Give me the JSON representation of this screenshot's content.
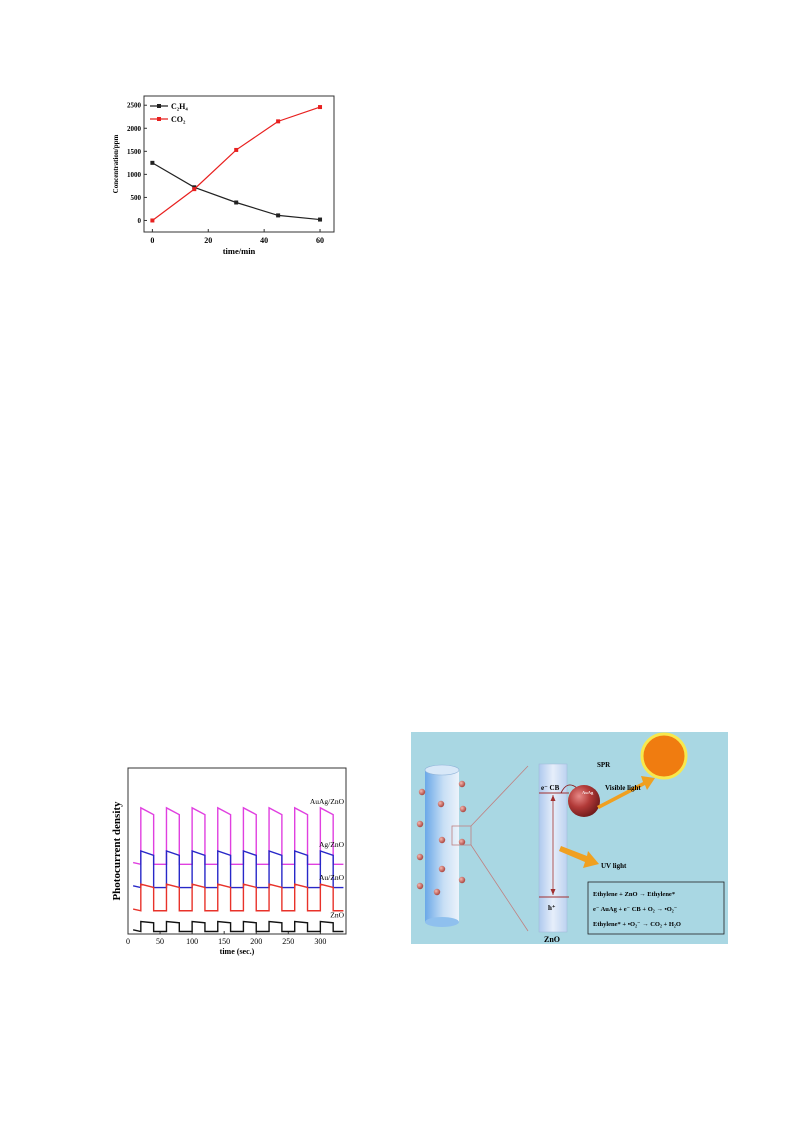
{
  "chart_data": [
    {
      "type": "line",
      "title": "",
      "xlabel": "time/min",
      "ylabel": "Concentration/ppm",
      "xlim": [
        -3,
        65
      ],
      "ylim": [
        -250,
        2700
      ],
      "xticks": [
        "0",
        "20",
        "40",
        "60"
      ],
      "yticks": [
        "0",
        "500",
        "1000",
        "1500",
        "2000",
        "2500"
      ],
      "legend_position": "top-left",
      "x": [
        0,
        15,
        30,
        45,
        60
      ],
      "series": [
        {
          "name": "C₂H₄",
          "color": "#222222",
          "values": [
            1250,
            720,
            390,
            110,
            20
          ]
        },
        {
          "name": "CO₂",
          "color": "#e8201f",
          "values": [
            0,
            680,
            1530,
            2150,
            2460
          ]
        }
      ]
    },
    {
      "type": "line",
      "title": "",
      "xlabel": "time (sec.)",
      "ylabel": "Photocurrent density",
      "xlim": [
        0,
        340
      ],
      "xticks": [
        "0",
        "50",
        "100",
        "150",
        "200",
        "250",
        "300"
      ],
      "on_off_period_sec": 40,
      "series": [
        {
          "name": "AuAg/ZnO",
          "color": "#e040e0",
          "baseline": 0.42,
          "step": 0.34
        },
        {
          "name": "Ag/ZnO",
          "color": "#2828c8",
          "baseline": 0.28,
          "step": 0.22
        },
        {
          "name": "Au/ZnO",
          "color": "#e8322a",
          "baseline": 0.14,
          "step": 0.16
        },
        {
          "name": "ZnO",
          "color": "#111111",
          "baseline": 0.015,
          "step": 0.06
        }
      ]
    }
  ],
  "diagram": {
    "labels": {
      "spr": "SPR",
      "visible_light": "Visible light",
      "uv_light": "UV light",
      "ecb": "e⁻ CB",
      "auag": "AuAg",
      "hplus": "h⁺",
      "zno": "ZnO"
    },
    "equations": [
      "Ethylene + ZnO → Ethylene*",
      "e⁻ AuAg + e⁻ CB + O₂ → •O₂⁻",
      "Ethylene* + •O₂⁻ → CO₂ + H₂O"
    ],
    "colors": {
      "background": "#a9d7e3",
      "rod": "#8fc4ef",
      "particle": "#c0504d",
      "sun": "#f07c10",
      "sun_ring": "#f8e84c",
      "light_arrow": "#f0a020"
    }
  }
}
